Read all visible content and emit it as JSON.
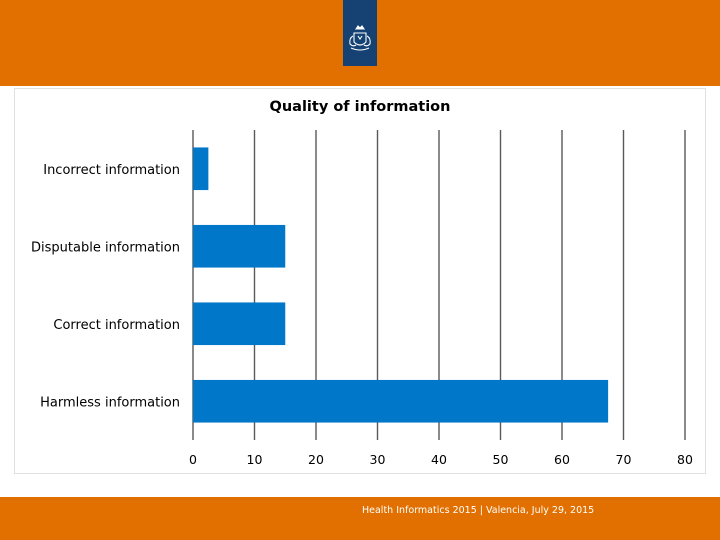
{
  "header": {
    "logo_icon": "dutch-government-coat-of-arms-icon"
  },
  "footer": {
    "text": "Health Informatics 2015 | Valencia, July 29, 2015"
  },
  "colors": {
    "band": "#e17000",
    "logo_bg": "#154273",
    "bar": "#0077c8",
    "grid": "#595959"
  },
  "chart_data": {
    "type": "bar",
    "orientation": "horizontal",
    "title": "Quality of information",
    "categories": [
      "Incorrect information",
      "Disputable information",
      "Correct information",
      "Harmless information"
    ],
    "values": [
      2.5,
      15,
      15,
      67.5
    ],
    "xlim": [
      0,
      80
    ],
    "xticks": [
      0,
      10,
      20,
      30,
      40,
      50,
      60,
      70,
      80
    ],
    "grid": true,
    "legend": "none"
  }
}
